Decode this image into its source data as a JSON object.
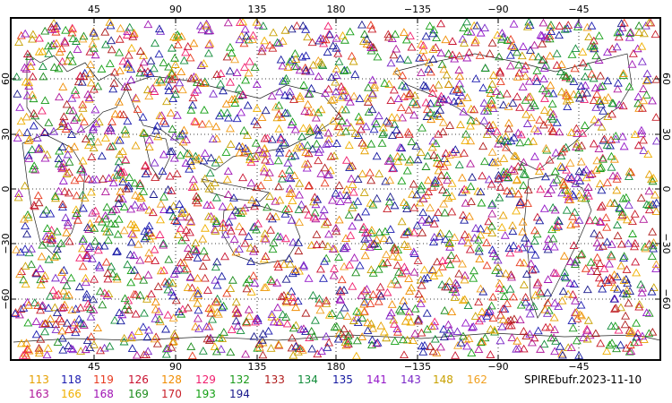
{
  "map": {
    "top_lon_labels": [
      "45",
      "90",
      "135",
      "180",
      "−135",
      "−90",
      "−45"
    ],
    "bottom_lon_labels": [
      "45",
      "90",
      "135",
      "180",
      "−135",
      "−90",
      "−45"
    ],
    "left_lat_labels": [
      "60",
      "30",
      "0",
      "−30",
      "−60"
    ],
    "right_lat_labels": [
      "60",
      "30",
      "0",
      "−30",
      "−60"
    ],
    "observation_marker": "triangle-outline",
    "observation_count_visible_approx": 2600
  },
  "legend": {
    "title": "SPIREbufr.2023-11-10",
    "items": [
      {
        "label": "113",
        "color": "#e6a000"
      },
      {
        "label": "118",
        "color": "#1b1bb0"
      },
      {
        "label": "119",
        "color": "#e83a1f"
      },
      {
        "label": "126",
        "color": "#c8102e"
      },
      {
        "label": "128",
        "color": "#f08c00"
      },
      {
        "label": "129",
        "color": "#f01e6e"
      },
      {
        "label": "132",
        "color": "#1a9a1a"
      },
      {
        "label": "133",
        "color": "#b01c1c"
      },
      {
        "label": "134",
        "color": "#128c3a"
      },
      {
        "label": "135",
        "color": "#1418a0"
      },
      {
        "label": "141",
        "color": "#9418c8"
      },
      {
        "label": "143",
        "color": "#7a28c8"
      },
      {
        "label": "148",
        "color": "#c8a000"
      },
      {
        "label": "162",
        "color": "#f0a020"
      },
      {
        "label": "163",
        "color": "#b0189a"
      },
      {
        "label": "166",
        "color": "#f0b000"
      },
      {
        "label": "168",
        "color": "#a014b4"
      },
      {
        "label": "169",
        "color": "#1c8c1c"
      },
      {
        "label": "170",
        "color": "#c81e28"
      },
      {
        "label": "193",
        "color": "#14a014"
      },
      {
        "label": "194",
        "color": "#1a1a8c"
      }
    ]
  }
}
